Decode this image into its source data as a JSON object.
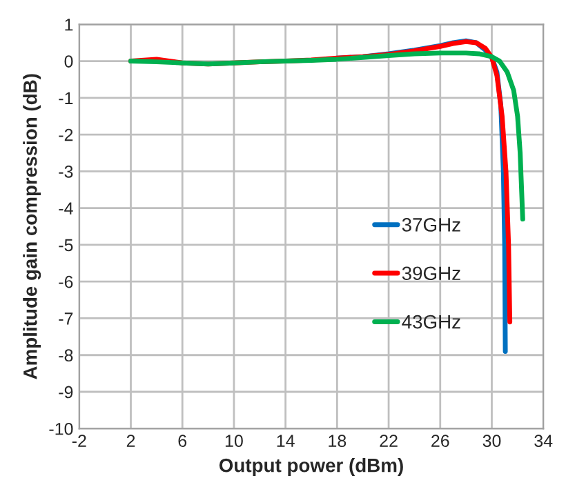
{
  "chart_data": {
    "type": "line",
    "xlabel": "Output power (dBm)",
    "ylabel": "Amplitude gain compression (dB)",
    "xlim": [
      -2,
      34
    ],
    "ylim": [
      -10,
      1
    ],
    "xticks": [
      -2,
      2,
      6,
      10,
      14,
      18,
      22,
      26,
      30,
      34
    ],
    "yticks": [
      -10,
      -9,
      -8,
      -7,
      -6,
      -5,
      -4,
      -3,
      -2,
      -1,
      0,
      1
    ],
    "grid": true,
    "legend": "right",
    "marker": "none",
    "line_style": "solid",
    "series": [
      {
        "name": "37GHz",
        "color": "#0070c0",
        "x": [
          18,
          20,
          22,
          24,
          26,
          27,
          28,
          28.8,
          29.5,
          30,
          30.4,
          30.7,
          30.9,
          31.0,
          31.05
        ],
        "values": [
          0.08,
          0.12,
          0.2,
          0.3,
          0.42,
          0.5,
          0.55,
          0.5,
          0.3,
          0.1,
          -0.3,
          -1.2,
          -3,
          -5,
          -7.9
        ]
      },
      {
        "name": "39GHz",
        "color": "#ff0000",
        "x": [
          2,
          4,
          6,
          8,
          10,
          12,
          14,
          16,
          18,
          20,
          22,
          24,
          26,
          27,
          28,
          28.8,
          29.5,
          30,
          30.4,
          30.8,
          31.1,
          31.3,
          31.4
        ],
        "values": [
          0,
          0.05,
          -0.05,
          -0.08,
          -0.05,
          -0.02,
          0,
          0.03,
          0.08,
          0.12,
          0.18,
          0.28,
          0.4,
          0.48,
          0.53,
          0.5,
          0.35,
          0.1,
          -0.4,
          -1.5,
          -3,
          -5,
          -7.1
        ]
      },
      {
        "name": "43GHz",
        "color": "#00b050",
        "x": [
          2,
          4,
          6,
          8,
          10,
          12,
          14,
          16,
          18,
          20,
          22,
          24,
          26,
          28,
          29,
          30,
          30.6,
          31.2,
          31.7,
          32.0,
          32.2,
          32.4
        ],
        "values": [
          0,
          -0.02,
          -0.05,
          -0.08,
          -0.05,
          -0.02,
          0,
          0.02,
          0.05,
          0.1,
          0.15,
          0.2,
          0.22,
          0.22,
          0.2,
          0.12,
          0,
          -0.3,
          -0.8,
          -1.5,
          -2.5,
          -4.3
        ]
      }
    ]
  }
}
